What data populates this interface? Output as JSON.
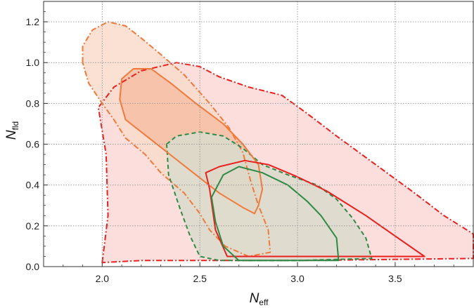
{
  "chart_data": {
    "type": "contour",
    "xlabel": {
      "main": "N",
      "sub": "eff"
    },
    "ylabel": {
      "main": "N",
      "sub": "fld"
    },
    "xlim": [
      1.7,
      3.9
    ],
    "ylim": [
      0.0,
      1.3
    ],
    "xticks": [
      2.0,
      2.5,
      3.0,
      3.5
    ],
    "xtick_labels": [
      "2.0",
      "2.5",
      "3.0",
      "3.5"
    ],
    "yticks": [
      0.0,
      0.2,
      0.4,
      0.6,
      0.8,
      1.0,
      1.2
    ],
    "ytick_labels": [
      "0.0",
      "0.2",
      "0.4",
      "0.6",
      "0.8",
      "1.0",
      "1.2"
    ],
    "grid": true,
    "series": [
      {
        "color": "#e8211f",
        "fill": "#fbd8d6",
        "style": "dashdot",
        "level": "outer",
        "points": [
          [
            2.0,
            0.02
          ],
          [
            2.03,
            0.25
          ],
          [
            2.02,
            0.55
          ],
          [
            1.98,
            0.78
          ],
          [
            2.06,
            0.88
          ],
          [
            2.2,
            0.96
          ],
          [
            2.38,
            1.0
          ],
          [
            2.5,
            0.98
          ],
          [
            2.6,
            0.93
          ],
          [
            2.75,
            0.88
          ],
          [
            2.92,
            0.84
          ],
          [
            3.05,
            0.75
          ],
          [
            3.2,
            0.64
          ],
          [
            3.4,
            0.5
          ],
          [
            3.6,
            0.36
          ],
          [
            3.75,
            0.25
          ],
          [
            3.9,
            0.16
          ],
          [
            3.9,
            0.04
          ],
          [
            3.0,
            0.03
          ],
          [
            2.5,
            0.03
          ],
          [
            2.2,
            0.03
          ]
        ]
      },
      {
        "color": "#e8211f",
        "fill": "none",
        "style": "solid",
        "level": "inner",
        "points": [
          [
            2.53,
            0.46
          ],
          [
            2.6,
            0.49
          ],
          [
            2.73,
            0.52
          ],
          [
            2.85,
            0.5
          ],
          [
            3.0,
            0.44
          ],
          [
            3.15,
            0.37
          ],
          [
            3.35,
            0.25
          ],
          [
            3.5,
            0.15
          ],
          [
            3.65,
            0.05
          ],
          [
            3.2,
            0.05
          ],
          [
            2.64,
            0.05
          ],
          [
            2.58,
            0.18
          ],
          [
            2.55,
            0.38
          ]
        ]
      },
      {
        "color": "#f07a3c",
        "fill": "#f9dccd",
        "style": "dashdot",
        "level": "outer",
        "points": [
          [
            1.9,
            1.0
          ],
          [
            1.9,
            1.08
          ],
          [
            1.95,
            1.16
          ],
          [
            2.03,
            1.2
          ],
          [
            2.12,
            1.18
          ],
          [
            2.2,
            1.12
          ],
          [
            2.3,
            1.04
          ],
          [
            2.42,
            0.94
          ],
          [
            2.55,
            0.8
          ],
          [
            2.65,
            0.68
          ],
          [
            2.72,
            0.56
          ],
          [
            2.76,
            0.42
          ],
          [
            2.8,
            0.3
          ],
          [
            2.85,
            0.18
          ],
          [
            2.86,
            0.07
          ],
          [
            2.75,
            0.05
          ],
          [
            2.63,
            0.1
          ],
          [
            2.55,
            0.18
          ],
          [
            2.5,
            0.26
          ],
          [
            2.42,
            0.36
          ],
          [
            2.3,
            0.46
          ],
          [
            2.22,
            0.55
          ],
          [
            2.12,
            0.63
          ],
          [
            2.06,
            0.72
          ],
          [
            2.0,
            0.8
          ],
          [
            1.93,
            0.9
          ]
        ]
      },
      {
        "color": "#f07a3c",
        "fill": "#f6bea5",
        "style": "solid",
        "level": "inner",
        "points": [
          [
            2.1,
            0.92
          ],
          [
            2.16,
            0.97
          ],
          [
            2.25,
            0.97
          ],
          [
            2.35,
            0.9
          ],
          [
            2.48,
            0.8
          ],
          [
            2.62,
            0.7
          ],
          [
            2.72,
            0.6
          ],
          [
            2.8,
            0.5
          ],
          [
            2.82,
            0.38
          ],
          [
            2.8,
            0.3
          ],
          [
            2.78,
            0.26
          ],
          [
            2.72,
            0.29
          ],
          [
            2.6,
            0.36
          ],
          [
            2.48,
            0.45
          ],
          [
            2.36,
            0.54
          ],
          [
            2.24,
            0.63
          ],
          [
            2.12,
            0.72
          ],
          [
            2.09,
            0.82
          ]
        ]
      },
      {
        "color": "#2e8a45",
        "fill": "#d9dccd",
        "style": "dashed",
        "level": "outer",
        "points": [
          [
            2.33,
            0.6
          ],
          [
            2.38,
            0.64
          ],
          [
            2.5,
            0.66
          ],
          [
            2.62,
            0.64
          ],
          [
            2.72,
            0.58
          ],
          [
            2.82,
            0.5
          ],
          [
            2.95,
            0.45
          ],
          [
            3.1,
            0.4
          ],
          [
            3.2,
            0.33
          ],
          [
            3.28,
            0.24
          ],
          [
            3.35,
            0.14
          ],
          [
            3.38,
            0.04
          ],
          [
            3.0,
            0.03
          ],
          [
            2.6,
            0.03
          ],
          [
            2.5,
            0.05
          ],
          [
            2.45,
            0.15
          ],
          [
            2.4,
            0.28
          ],
          [
            2.34,
            0.45
          ]
        ]
      },
      {
        "color": "#2e8a45",
        "fill": "none",
        "style": "solid",
        "level": "inner",
        "points": [
          [
            2.56,
            0.34
          ],
          [
            2.62,
            0.45
          ],
          [
            2.7,
            0.49
          ],
          [
            2.82,
            0.46
          ],
          [
            2.95,
            0.4
          ],
          [
            3.05,
            0.32
          ],
          [
            3.12,
            0.25
          ],
          [
            3.2,
            0.14
          ],
          [
            3.21,
            0.03
          ],
          [
            2.8,
            0.03
          ],
          [
            2.7,
            0.03
          ],
          [
            2.62,
            0.1
          ],
          [
            2.58,
            0.22
          ]
        ]
      }
    ]
  }
}
